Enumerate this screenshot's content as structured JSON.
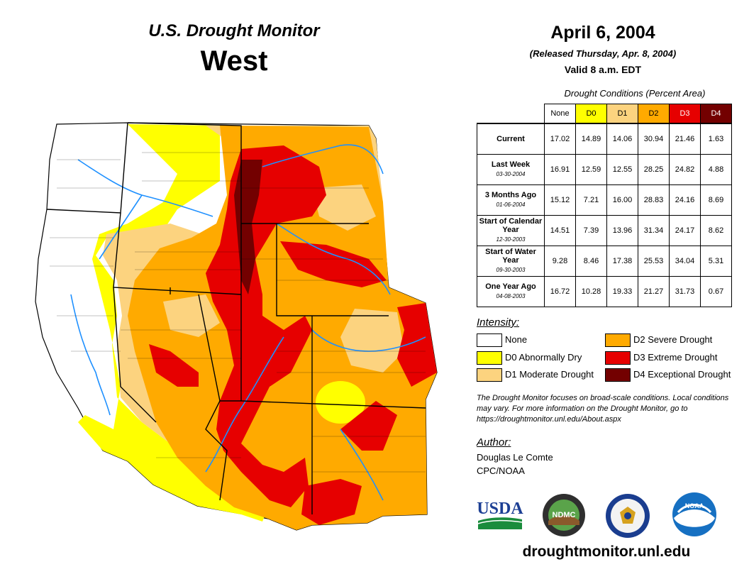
{
  "header": {
    "product": "U.S. Drought Monitor",
    "region": "West",
    "date": "April 6, 2004",
    "released": "(Released Thursday, Apr. 8, 2004)",
    "valid": "Valid 8 a.m. EDT"
  },
  "table": {
    "title": "Drought Conditions (Percent Area)",
    "columns": [
      "None",
      "D0",
      "D1",
      "D2",
      "D3",
      "D4"
    ],
    "column_colors": [
      "#ffffff",
      "#ffff00",
      "#fcd37f",
      "#ffaa00",
      "#e60000",
      "#730000"
    ],
    "column_text_colors": [
      "#000000",
      "#000000",
      "#000000",
      "#000000",
      "#ffffff",
      "#ffffff"
    ],
    "rows": [
      {
        "label": "Current",
        "sub": "",
        "values": [
          "17.02",
          "14.89",
          "14.06",
          "30.94",
          "21.46",
          "1.63"
        ]
      },
      {
        "label": "Last Week",
        "sub": "03-30-2004",
        "values": [
          "16.91",
          "12.59",
          "12.55",
          "28.25",
          "24.82",
          "4.88"
        ]
      },
      {
        "label": "3 Months Ago",
        "sub": "01-06-2004",
        "values": [
          "15.12",
          "7.21",
          "16.00",
          "28.83",
          "24.16",
          "8.69"
        ]
      },
      {
        "label": "Start of Calendar Year",
        "sub": "12-30-2003",
        "values": [
          "14.51",
          "7.39",
          "13.96",
          "31.34",
          "24.17",
          "8.62"
        ]
      },
      {
        "label": "Start of Water Year",
        "sub": "09-30-2003",
        "values": [
          "9.28",
          "8.46",
          "17.38",
          "25.53",
          "34.04",
          "5.31"
        ]
      },
      {
        "label": "One Year Ago",
        "sub": "04-08-2003",
        "values": [
          "16.72",
          "10.28",
          "19.33",
          "21.27",
          "31.73",
          "0.67"
        ]
      }
    ]
  },
  "legend": {
    "title": "Intensity:",
    "items": [
      {
        "label": "None",
        "color": "#ffffff"
      },
      {
        "label": "D0 Abnormally Dry",
        "color": "#ffff00"
      },
      {
        "label": "D1 Moderate Drought",
        "color": "#fcd37f"
      },
      {
        "label": "D2 Severe Drought",
        "color": "#ffaa00"
      },
      {
        "label": "D3 Extreme Drought",
        "color": "#e60000"
      },
      {
        "label": "D4 Exceptional Drought",
        "color": "#730000"
      }
    ]
  },
  "note": "The Drought Monitor focuses on broad-scale conditions. Local conditions may vary. For more information on the Drought Monitor, go to https://droughtmonitor.unl.edu/About.aspx",
  "author": {
    "label": "Author:",
    "name": "Douglas Le Comte",
    "org": "CPC/NOAA"
  },
  "logos": {
    "usda": "USDA",
    "ndmc": "NDMC",
    "noaa": "NOAA"
  },
  "url": "droughtmonitor.unl.edu"
}
